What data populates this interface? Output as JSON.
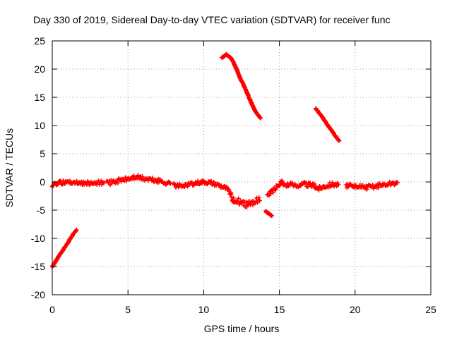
{
  "chart_data": {
    "type": "scatter",
    "title": "Day 330 of 2019, Sidereal Day-to-day VTEC variation (SDTVAR) for receiver func",
    "xlabel": "GPS time / hours",
    "ylabel": "SDTVAR / TECUs",
    "xlim": [
      0,
      25
    ],
    "ylim": [
      -20,
      25
    ],
    "xticks": [
      0,
      5,
      10,
      15,
      20,
      25
    ],
    "yticks": [
      -20,
      -15,
      -10,
      -5,
      0,
      5,
      10,
      15,
      20,
      25
    ],
    "xtick_labels": [
      "0",
      "5",
      "10",
      "15",
      "20",
      "25"
    ],
    "ytick_labels": [
      "-20",
      "-15",
      "-10",
      "-5",
      "0",
      "5",
      "10",
      "15",
      "20",
      "25"
    ],
    "grid": true,
    "marker": "plus",
    "color": "#ff0000",
    "series": [
      {
        "name": "SDTVAR",
        "segments": [
          {
            "band": false,
            "x": [
              0.0,
              0.2,
              0.4,
              0.6,
              0.8,
              1.0,
              1.2,
              1.4,
              1.6
            ],
            "y": [
              -15.0,
              -14.2,
              -13.3,
              -12.5,
              -11.7,
              -10.9,
              -10.0,
              -9.2,
              -8.5
            ]
          },
          {
            "band": true,
            "x": [
              0.0,
              0.5,
              1.0,
              1.5,
              2.0,
              2.5,
              3.0,
              3.4
            ],
            "y": [
              -0.5,
              -0.2,
              0.0,
              -0.1,
              -0.2,
              -0.3,
              -0.1,
              -0.2
            ],
            "spread": 0.7
          },
          {
            "band": true,
            "x": [
              3.6,
              4.0,
              4.5,
              5.0,
              5.5,
              6.0,
              6.5,
              7.0,
              7.5,
              7.8
            ],
            "y": [
              -0.3,
              0.0,
              0.3,
              0.5,
              0.9,
              0.6,
              0.4,
              0.2,
              -0.1,
              -0.3
            ],
            "spread": 0.8
          },
          {
            "band": true,
            "x": [
              8.0,
              8.5,
              9.0,
              9.5,
              10.0,
              10.5,
              11.0,
              11.5,
              11.8
            ],
            "y": [
              -0.6,
              -0.7,
              -0.4,
              -0.2,
              0.0,
              -0.2,
              -0.6,
              -1.2,
              -2.2
            ],
            "spread": 0.7
          },
          {
            "band": true,
            "x": [
              11.8,
              12.0,
              12.3,
              12.6,
              12.9,
              13.2,
              13.5,
              13.7
            ],
            "y": [
              -2.4,
              -3.1,
              -3.5,
              -4.0,
              -3.8,
              -3.6,
              -3.4,
              -3.3
            ],
            "spread": 1.2
          },
          {
            "band": false,
            "x": [
              14.1,
              14.3,
              14.5
            ],
            "y": [
              -5.2,
              -5.6,
              -6.0
            ]
          },
          {
            "band": true,
            "x": [
              14.2,
              14.5,
              14.8,
              15.0,
              15.2
            ],
            "y": [
              -2.5,
              -1.7,
              -1.0,
              -0.4,
              0.0
            ],
            "spread": 0.7
          },
          {
            "band": true,
            "x": [
              15.2,
              15.7,
              16.2,
              16.7,
              17.2,
              17.6,
              18.0,
              18.5,
              18.9
            ],
            "y": [
              -0.5,
              -0.5,
              -0.6,
              -0.4,
              -0.6,
              -1.2,
              -0.7,
              -0.4,
              -0.5
            ],
            "spread": 0.8
          },
          {
            "band": true,
            "x": [
              19.4,
              20.0,
              20.5,
              21.0,
              21.5,
              22.0,
              22.5,
              22.8
            ],
            "y": [
              -0.7,
              -0.8,
              -1.0,
              -0.9,
              -0.7,
              -0.5,
              -0.3,
              -0.1
            ],
            "spread": 0.8
          },
          {
            "band": false,
            "x": [
              11.2,
              11.5,
              11.8,
              12.0,
              12.2,
              12.4,
              12.6,
              12.8,
              13.0,
              13.2,
              13.4,
              13.6,
              13.75
            ],
            "y": [
              22.0,
              22.6,
              22.0,
              21.0,
              19.8,
              18.4,
              17.4,
              16.2,
              14.9,
              13.7,
              12.6,
              11.8,
              11.3
            ]
          },
          {
            "band": false,
            "x": [
              17.4,
              17.6,
              17.8,
              18.0,
              18.2,
              18.4,
              18.6,
              18.8,
              18.95
            ],
            "y": [
              13.0,
              12.3,
              11.6,
              10.8,
              10.0,
              9.3,
              8.5,
              7.8,
              7.3
            ]
          }
        ]
      }
    ]
  }
}
